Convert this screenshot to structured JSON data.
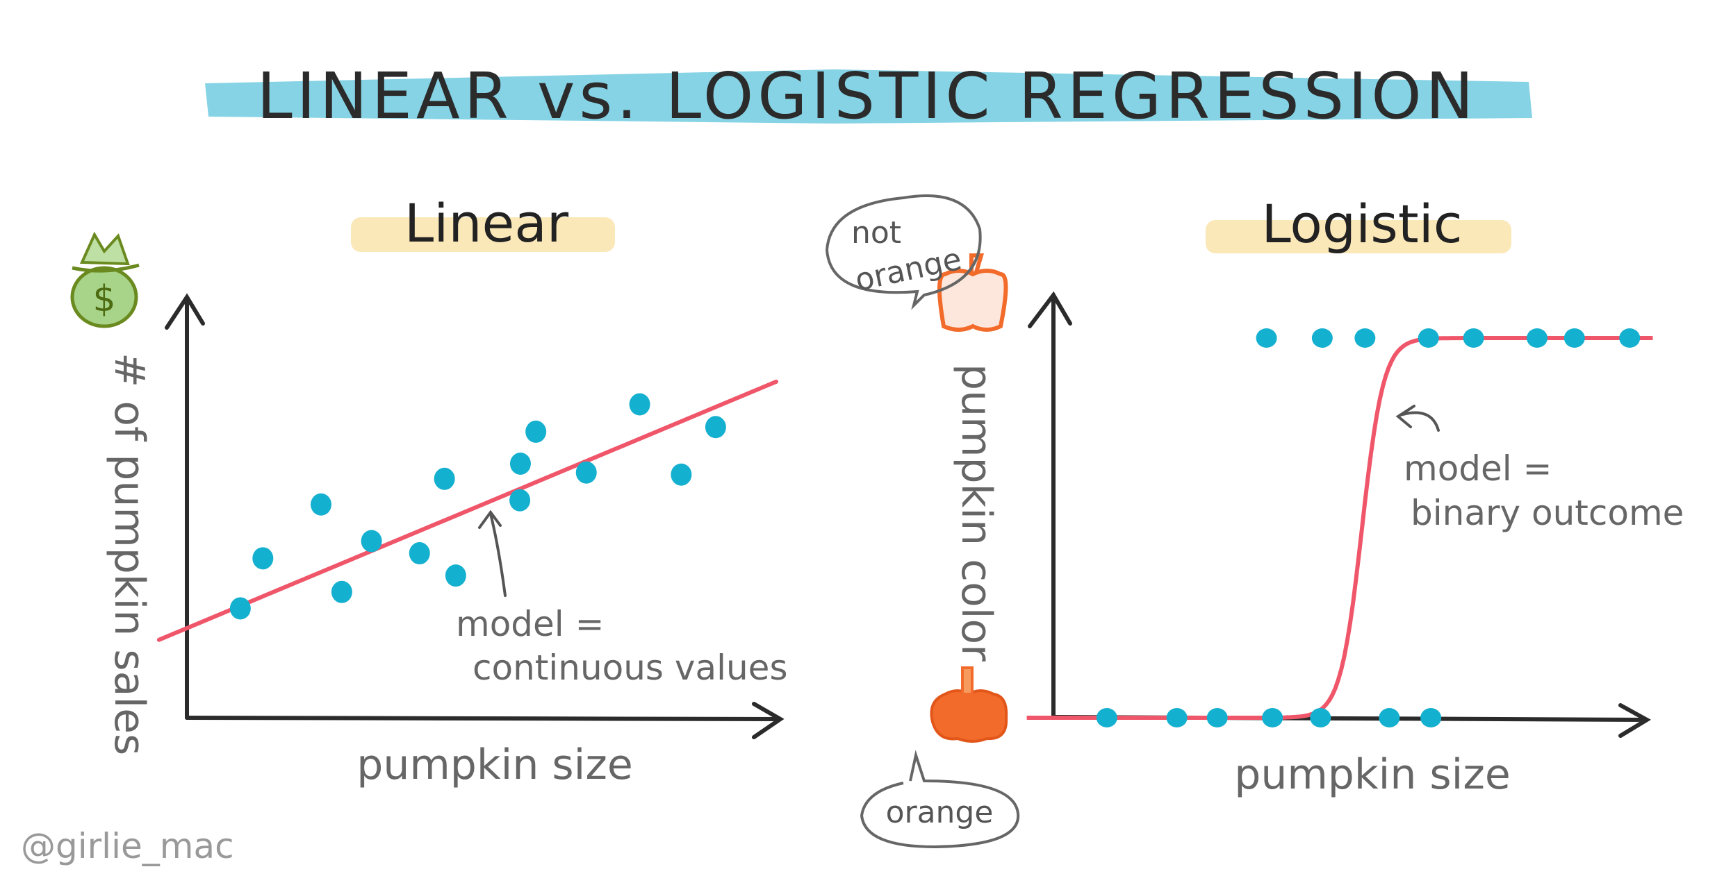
{
  "title": "LINEAR vs. LOGISTIC REGRESSION",
  "colors": {
    "banner": "#5ec4dc",
    "highlight": "#f9d98a",
    "dots": "#14b0cf",
    "model_line": "#f0566a",
    "axis": "#2b2b2b",
    "pumpkin": "#f26b2a",
    "money_bag": "#6a8a1f"
  },
  "icons": [
    "money-bag-icon",
    "pumpkin-outline-icon",
    "pumpkin-filled-icon",
    "speech-bubble-icon"
  ],
  "linear": {
    "heading": "Linear",
    "ylabel": "# of pumpkin sales",
    "xlabel": "pumpkin size",
    "annotation_line1": "model =",
    "annotation_line2": "continuous values"
  },
  "logistic": {
    "heading": "Logistic",
    "ylabel": "pumpkin color",
    "xlabel": "pumpkin size",
    "annotation_line1": "model =",
    "annotation_line2": "binary outcome",
    "top_bubble_line1": "not",
    "top_bubble_line2": "orange",
    "bottom_bubble": "orange"
  },
  "signature": "@girlie_mac",
  "chart_data": [
    {
      "type": "scatter",
      "title": "Linear",
      "xlabel": "pumpkin size",
      "ylabel": "# of pumpkin sales",
      "xlim": [
        0,
        100
      ],
      "ylim": [
        0,
        100
      ],
      "grid": false,
      "points": [
        [
          9,
          26
        ],
        [
          12.8,
          37.9
        ],
        [
          22.6,
          50.7
        ],
        [
          26.1,
          29.9
        ],
        [
          31.1,
          42
        ],
        [
          39.2,
          39.1
        ],
        [
          43.4,
          56.8
        ],
        [
          45.3,
          33.8
        ],
        [
          56.2,
          60.4
        ],
        [
          58.8,
          68
        ],
        [
          56.1,
          51.7
        ],
        [
          67.3,
          58.3
        ],
        [
          76.3,
          74.5
        ],
        [
          83.3,
          57.8
        ],
        [
          89.1,
          69.1
        ]
      ],
      "model": {
        "type": "linear",
        "intercept": 21.3,
        "slope": 0.59,
        "x_range": [
          -4.7,
          99.3
        ]
      }
    },
    {
      "type": "scatter",
      "title": "Logistic",
      "xlabel": "pumpkin size",
      "ylabel": "pumpkin color",
      "xlim": [
        0,
        100
      ],
      "ylim": [
        0,
        1.1
      ],
      "grid": false,
      "y_categories": {
        "0": "orange",
        "1": "not orange"
      },
      "points": [
        [
          9,
          0
        ],
        [
          20.8,
          0
        ],
        [
          27.6,
          0
        ],
        [
          36.9,
          0
        ],
        [
          45,
          0
        ],
        [
          56.6,
          0
        ],
        [
          63.6,
          0
        ],
        [
          35.9,
          1
        ],
        [
          45.3,
          1
        ],
        [
          52.5,
          1
        ],
        [
          63.2,
          1
        ],
        [
          70.8,
          1
        ],
        [
          81.5,
          1
        ],
        [
          87.8,
          1
        ],
        [
          97.1,
          1
        ]
      ],
      "model": {
        "type": "sigmoid",
        "midpoint": 52,
        "steepness": 0.55,
        "x_range": [
          -4.5,
          101
        ]
      }
    }
  ]
}
